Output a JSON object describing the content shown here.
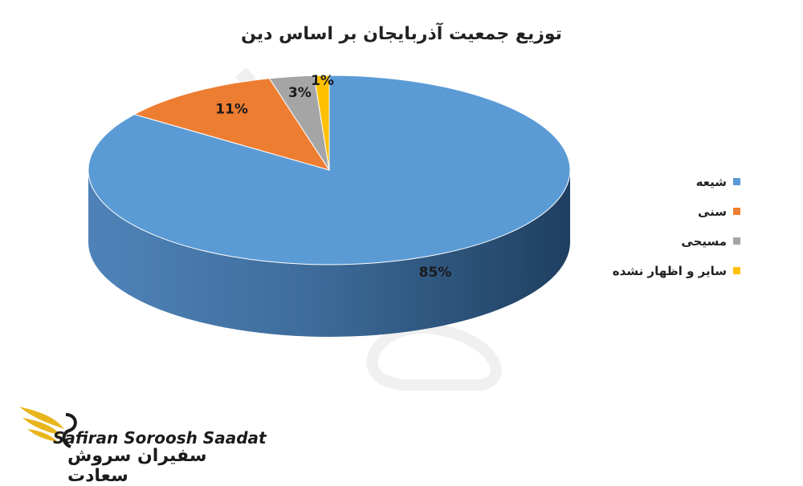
{
  "chart_data": {
    "type": "pie",
    "title": "توزیع جمعیت آذربایجان بر اساس دین",
    "categories": [
      "شیعه",
      "سنی",
      "مسیحی",
      "سایر و اظهار نشده"
    ],
    "values": [
      85,
      11,
      3,
      1
    ],
    "labels": [
      "85%",
      "11%",
      "3%",
      "1%"
    ],
    "colors": [
      "#5b9bd5",
      "#ed7d31",
      "#a5a5a5",
      "#ffc000"
    ],
    "legend_position": "right"
  },
  "branding": {
    "name_en": "Safiran Soroosh Saadat",
    "name_fa": "سفیران سروش سعادت"
  }
}
